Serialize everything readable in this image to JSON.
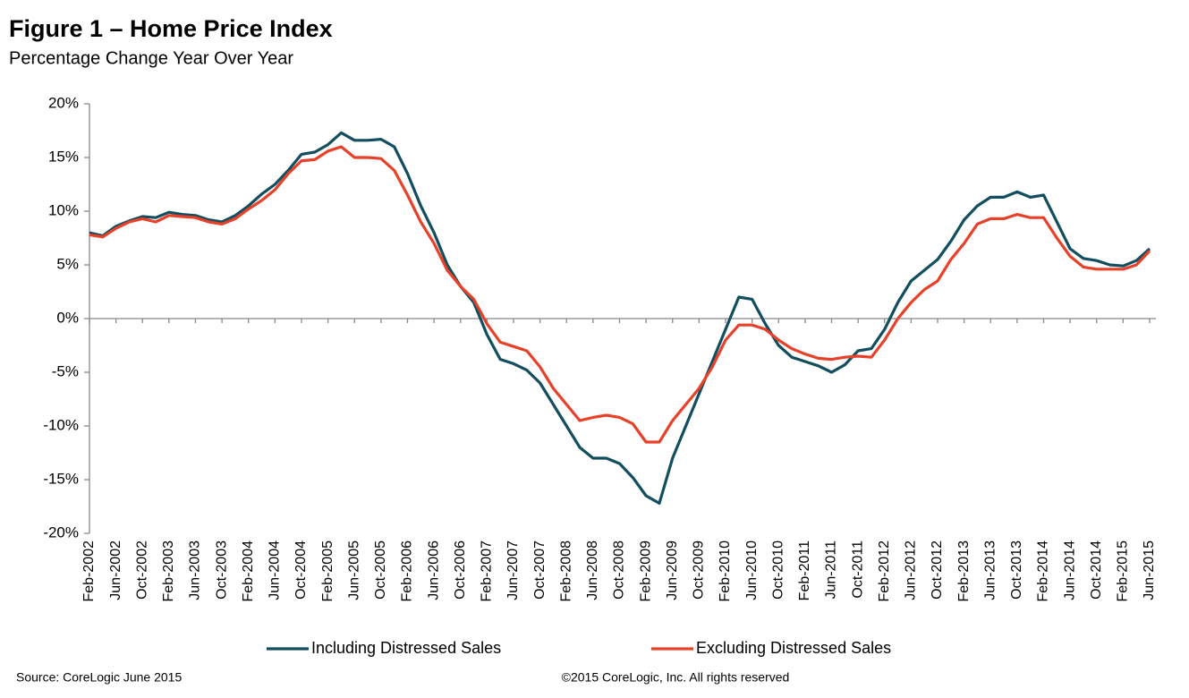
{
  "chart_data": {
    "type": "line",
    "title": "Figure 1 – Home Price Index",
    "subtitle": "Percentage Change Year Over Year",
    "source": "Source: CoreLogic  June 2015",
    "copyright": "©2015 CoreLogic, Inc. All rights reserved",
    "categories": [
      "Feb-2002",
      null,
      "Jun-2002",
      null,
      "Oct-2002",
      null,
      "Feb-2003",
      null,
      "Jun-2003",
      null,
      "Oct-2003",
      null,
      "Feb-2004",
      null,
      "Jun-2004",
      null,
      "Oct-2004",
      null,
      "Feb-2005",
      null,
      "Jun-2005",
      null,
      "Oct-2005",
      null,
      "Feb-2006",
      null,
      "Jun-2006",
      null,
      "Oct-2006",
      null,
      "Feb-2007",
      null,
      "Jun-2007",
      null,
      "Oct-2007",
      null,
      "Feb-2008",
      null,
      "Jun-2008",
      null,
      "Oct-2008",
      null,
      "Feb-2009",
      null,
      "Jun-2009",
      null,
      "Oct-2009",
      null,
      "Feb-2010",
      null,
      "Jun-2010",
      null,
      "Oct-2010",
      null,
      "Feb-2011",
      null,
      "Jun-2011",
      null,
      "Oct-2011",
      null,
      "Feb-2012",
      null,
      "Jun-2012",
      null,
      "Oct-2012",
      null,
      "Feb-2013",
      null,
      "Jun-2013",
      null,
      "Oct-2013",
      null,
      "Feb-2014",
      null,
      "Jun-2014",
      null,
      "Oct-2014",
      null,
      "Feb-2015",
      null,
      "Jun-2015"
    ],
    "series": [
      {
        "name": "Including Distressed Sales",
        "color": "#124e5e",
        "values": [
          8.0,
          7.7,
          8.6,
          9.1,
          9.5,
          9.4,
          9.9,
          9.7,
          9.6,
          9.2,
          9.0,
          9.6,
          10.5,
          11.6,
          12.5,
          13.8,
          15.3,
          15.5,
          16.2,
          17.3,
          16.6,
          16.6,
          16.7,
          16.0,
          13.5,
          10.5,
          8.0,
          5.0,
          3.0,
          1.5,
          -1.5,
          -3.8,
          -4.2,
          -4.8,
          -6.0,
          -8.0,
          -10.0,
          -12.0,
          -13.0,
          -13.0,
          -13.5,
          -14.8,
          -16.5,
          -17.2,
          -13.0,
          -10.0,
          -7.0,
          -4.0,
          -1.0,
          2.0,
          1.8,
          -0.5,
          -2.5,
          -3.6,
          -4.0,
          -4.4,
          -5.0,
          -4.3,
          -3.0,
          -2.8,
          -1.0,
          1.5,
          3.5,
          4.5,
          5.5,
          7.2,
          9.2,
          10.5,
          11.3,
          11.3,
          11.8,
          11.3,
          11.5,
          9.0,
          6.5,
          5.6,
          5.4,
          5.0,
          4.9,
          5.4,
          6.5
        ]
      },
      {
        "name": "Excluding Distressed Sales",
        "color": "#e8412a",
        "values": [
          7.8,
          7.6,
          8.4,
          9.0,
          9.3,
          9.0,
          9.6,
          9.5,
          9.4,
          9.0,
          8.8,
          9.3,
          10.2,
          11.0,
          12.0,
          13.5,
          14.7,
          14.8,
          15.6,
          16.0,
          15.0,
          15.0,
          14.9,
          13.8,
          11.5,
          9.0,
          7.0,
          4.5,
          3.0,
          1.8,
          -0.5,
          -2.2,
          -2.6,
          -3.0,
          -4.5,
          -6.5,
          -8.0,
          -9.5,
          -9.2,
          -9.0,
          -9.2,
          -9.8,
          -11.5,
          -11.5,
          -9.5,
          -8.0,
          -6.5,
          -4.5,
          -2.0,
          -0.6,
          -0.6,
          -1.0,
          -2.0,
          -2.8,
          -3.3,
          -3.7,
          -3.8,
          -3.6,
          -3.5,
          -3.6,
          -2.0,
          0.0,
          1.5,
          2.7,
          3.5,
          5.5,
          7.0,
          8.8,
          9.3,
          9.3,
          9.7,
          9.4,
          9.4,
          7.5,
          5.8,
          4.8,
          4.6,
          4.6,
          4.6,
          5.0,
          6.3
        ]
      }
    ],
    "ylim": [
      -20,
      20
    ],
    "yticks": [
      {
        "value": -20,
        "label": "-20%"
      },
      {
        "value": -15,
        "label": "-15%"
      },
      {
        "value": -10,
        "label": "-10%"
      },
      {
        "value": -5,
        "label": "-5%"
      },
      {
        "value": 0,
        "label": "0%"
      },
      {
        "value": 5,
        "label": "5%"
      },
      {
        "value": 10,
        "label": "10%"
      },
      {
        "value": 15,
        "label": "15%"
      },
      {
        "value": 20,
        "label": "20%"
      }
    ],
    "legend": "bottom"
  }
}
